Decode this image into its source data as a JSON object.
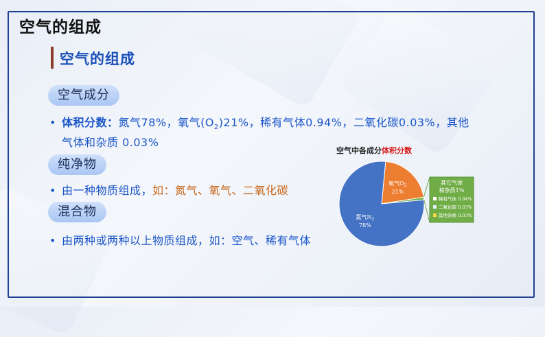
{
  "slide_title": "空气的组成",
  "section_title": "空气的组成",
  "pills": [
    "空气成分",
    "纯净物",
    "混合物"
  ],
  "bullets": {
    "b1_label": "体积分数：",
    "b1_text_a": "氮气78%，氧气(O",
    "b1_sub": "2",
    "b1_text_b": ")21%，稀有气体0.94%，二氧化碳0.03%，其他",
    "b1_line2": "气体和杂质 0.03%",
    "b2_text": "由一种物质组成，",
    "b2_example": "如：氮气、氧气、二氧化碳",
    "b3_text": "由两种或两种以上物质组成，",
    "b3_example": "如：空气、稀有气体"
  },
  "colors": {
    "frame": "#1f3f8f",
    "section_title": "#1a4fb8",
    "bullet_blue": "#1b56c9",
    "example_orange": "#c7651b",
    "title_red": "#d91515",
    "n2_slice": "#4472c4",
    "o2_slice": "#ed7d31",
    "other_box": "#70ad47"
  },
  "chart_data": {
    "type": "pie",
    "title_prefix": "空气中各成分",
    "title_highlight": "体积分数",
    "slices": [
      {
        "name": "氮气N",
        "sub": "2",
        "value": 78,
        "label": "78%"
      },
      {
        "name": "氧气O",
        "sub": "2",
        "value": 21,
        "label": "21%"
      },
      {
        "name": "其它气体和杂质",
        "value": 1,
        "label": "1%"
      }
    ],
    "breakdown_title": "其它气体和杂质1%",
    "breakdown_title_line1": "其它气体",
    "breakdown_title_line2": "和杂质1%",
    "breakdown": [
      {
        "name": "稀有气体",
        "value": 0.94,
        "label": "稀有气体 0.94%"
      },
      {
        "name": "二氧化碳",
        "value": 0.03,
        "label": "二氧化碳 0.03%"
      },
      {
        "name": "其他杂质",
        "value": 0.03,
        "label": "其他杂质 0.03%"
      }
    ]
  }
}
